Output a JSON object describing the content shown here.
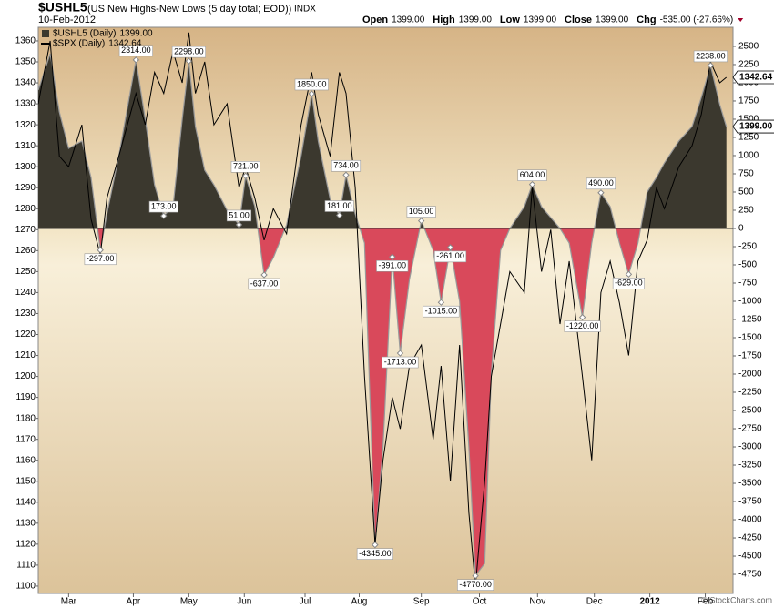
{
  "chart_data": {
    "type": "line",
    "title": "$USHL5",
    "subtitle": "(US New Highs-New Lows (5 day total; EOD))",
    "exchange": "INDX",
    "date": "10-Feb-2012",
    "quote": [
      {
        "label": "Open",
        "value": "1399.00"
      },
      {
        "label": "High",
        "value": "1399.00"
      },
      {
        "label": "Low",
        "value": "1399.00"
      },
      {
        "label": "Close",
        "value": "1399.00"
      },
      {
        "label": "Chg",
        "value": "-535.00 (-27.66%)"
      }
    ],
    "watermark": "© StockCharts.com",
    "x": [
      0,
      0.9,
      1.6,
      2.3,
      3.3,
      4.0,
      4.7,
      5.2,
      6.1,
      7.4,
      8.1,
      8.8,
      9.5,
      10.2,
      10.9,
      11.4,
      11.9,
      12.6,
      13.3,
      14.3,
      15.2,
      15.7,
      16.4,
      17.1,
      17.8,
      18.8,
      19.9,
      20.7,
      21.2,
      22.1,
      22.8,
      23.3,
      24.0,
      24.7,
      25.5,
      26.1,
      26.8,
      27.4,
      28.1,
      29.0,
      29.9,
      30.5,
      31.2,
      31.9,
      32.6,
      33.1,
      33.8,
      34.3,
      35.0,
      35.7,
      36.8,
      37.4,
      38.1,
      38.8,
      39.5,
      40.2,
      41.2,
      41.9,
      42.6,
      43.3,
      44.0,
      44.7,
      45.4,
      46.1,
      46.8,
      47.4,
      48.5,
      49.5,
      50.2,
      50.9,
      51.6,
      52.1
    ],
    "series": [
      {
        "name": "$USHL5 (Daily)",
        "last_label": "1399.00",
        "axis": "y2",
        "color": "#3b382e",
        "negative_color": "#d9495b",
        "values": [
          1900,
          2400,
          1600,
          1100,
          1200,
          700,
          -297,
          200,
          1000,
          2314,
          1500,
          600,
          173,
          300,
          1500,
          2298,
          1400,
          800,
          600,
          250,
          51,
          721,
          300,
          -637,
          -400,
          50,
          1000,
          1850,
          1200,
          400,
          181,
          734,
          200,
          -200,
          -4345,
          -3000,
          -391,
          -1713,
          -700,
          105,
          -300,
          -1015,
          -261,
          -1000,
          -3000,
          -4770,
          -4600,
          -2000,
          -300,
          0,
          300,
          604,
          300,
          150,
          0,
          -200,
          -1220,
          -200,
          490,
          300,
          -200,
          -629,
          -200,
          500,
          700,
          900,
          1200,
          1400,
          1800,
          2238,
          1700,
          1399
        ]
      },
      {
        "name": "$SPX (Daily)",
        "last_label": "1342.64",
        "color": "#000000",
        "values": [
          1330,
          1360,
          1305,
          1300,
          1320,
          1275,
          1258,
          1285,
          1305,
          1335,
          1320,
          1345,
          1335,
          1355,
          1340,
          1364,
          1335,
          1350,
          1320,
          1330,
          1290,
          1300,
          1285,
          1265,
          1280,
          1268,
          1320,
          1345,
          1325,
          1305,
          1345,
          1335,
          1290,
          1200,
          1120,
          1160,
          1190,
          1175,
          1205,
          1215,
          1170,
          1205,
          1150,
          1215,
          1135,
          1100,
          1150,
          1200,
          1225,
          1250,
          1240,
          1290,
          1250,
          1270,
          1225,
          1255,
          1200,
          1160,
          1240,
          1255,
          1235,
          1210,
          1255,
          1265,
          1290,
          1280,
          1300,
          1310,
          1325,
          1350,
          1340,
          1342.64
        ]
      }
    ],
    "annotations": [
      {
        "text": "-297.00",
        "x": 4.7,
        "y": -297
      },
      {
        "text": "2314.00",
        "x": 7.4,
        "y": 2314
      },
      {
        "text": "173.00",
        "x": 9.5,
        "y": 173
      },
      {
        "text": "2298.00",
        "x": 11.4,
        "y": 2298
      },
      {
        "text": "51.00",
        "x": 15.2,
        "y": 51
      },
      {
        "text": "721.00",
        "x": 15.7,
        "y": 721
      },
      {
        "text": "-637.00",
        "x": 17.1,
        "y": -637
      },
      {
        "text": "1850.00",
        "x": 20.7,
        "y": 1850
      },
      {
        "text": "181.00",
        "x": 22.8,
        "y": 181
      },
      {
        "text": "734.00",
        "x": 23.3,
        "y": 734
      },
      {
        "text": "-4345.00",
        "x": 25.5,
        "y": -4345
      },
      {
        "text": "-391.00",
        "x": 26.8,
        "y": -391
      },
      {
        "text": "-1713.00",
        "x": 27.4,
        "y": -1713
      },
      {
        "text": "105.00",
        "x": 29.0,
        "y": 105
      },
      {
        "text": "-1015.00",
        "x": 30.5,
        "y": -1015
      },
      {
        "text": "-261.00",
        "x": 31.2,
        "y": -261
      },
      {
        "text": "-4770.00",
        "x": 33.1,
        "y": -4770
      },
      {
        "text": "604.00",
        "x": 37.4,
        "y": 604
      },
      {
        "text": "-1220.00",
        "x": 41.2,
        "y": -1220
      },
      {
        "text": "490.00",
        "x": 42.6,
        "y": 490
      },
      {
        "text": "-629.00",
        "x": 44.7,
        "y": -629
      },
      {
        "text": "2238.00",
        "x": 50.9,
        "y": 2238
      }
    ],
    "xlim": [
      0,
      52.6
    ],
    "xticks": [
      {
        "value": 2.3,
        "label": "Mar"
      },
      {
        "value": 7.2,
        "label": "Apr"
      },
      {
        "value": 11.4,
        "label": "May"
      },
      {
        "value": 15.6,
        "label": "Jun"
      },
      {
        "value": 20.2,
        "label": "Jul"
      },
      {
        "value": 24.3,
        "label": "Aug"
      },
      {
        "value": 29.0,
        "label": "Sep"
      },
      {
        "value": 33.4,
        "label": "Oct"
      },
      {
        "value": 37.8,
        "label": "Nov"
      },
      {
        "value": 42.1,
        "label": "Dec"
      },
      {
        "value": 46.3,
        "label": "2012"
      },
      {
        "value": 50.5,
        "label": "Feb"
      }
    ],
    "ylim": [
      1096.5,
      1366.5
    ],
    "yticks": [
      1100,
      1110,
      1120,
      1130,
      1140,
      1150,
      1160,
      1170,
      1180,
      1190,
      1200,
      1210,
      1220,
      1230,
      1240,
      1250,
      1260,
      1270,
      1280,
      1290,
      1300,
      1310,
      1320,
      1330,
      1340,
      1350,
      1360
    ],
    "y2lim": [
      -5012,
      2762
    ],
    "y2ticks": [
      -4750,
      -4500,
      -4250,
      -4000,
      -3750,
      -3500,
      -3250,
      -3000,
      -2750,
      -2500,
      -2250,
      -2000,
      -1750,
      -1500,
      -1250,
      -1000,
      -750,
      -500,
      -250,
      0,
      250,
      500,
      750,
      1000,
      1250,
      1500,
      1750,
      2000,
      2250,
      2500
    ]
  }
}
